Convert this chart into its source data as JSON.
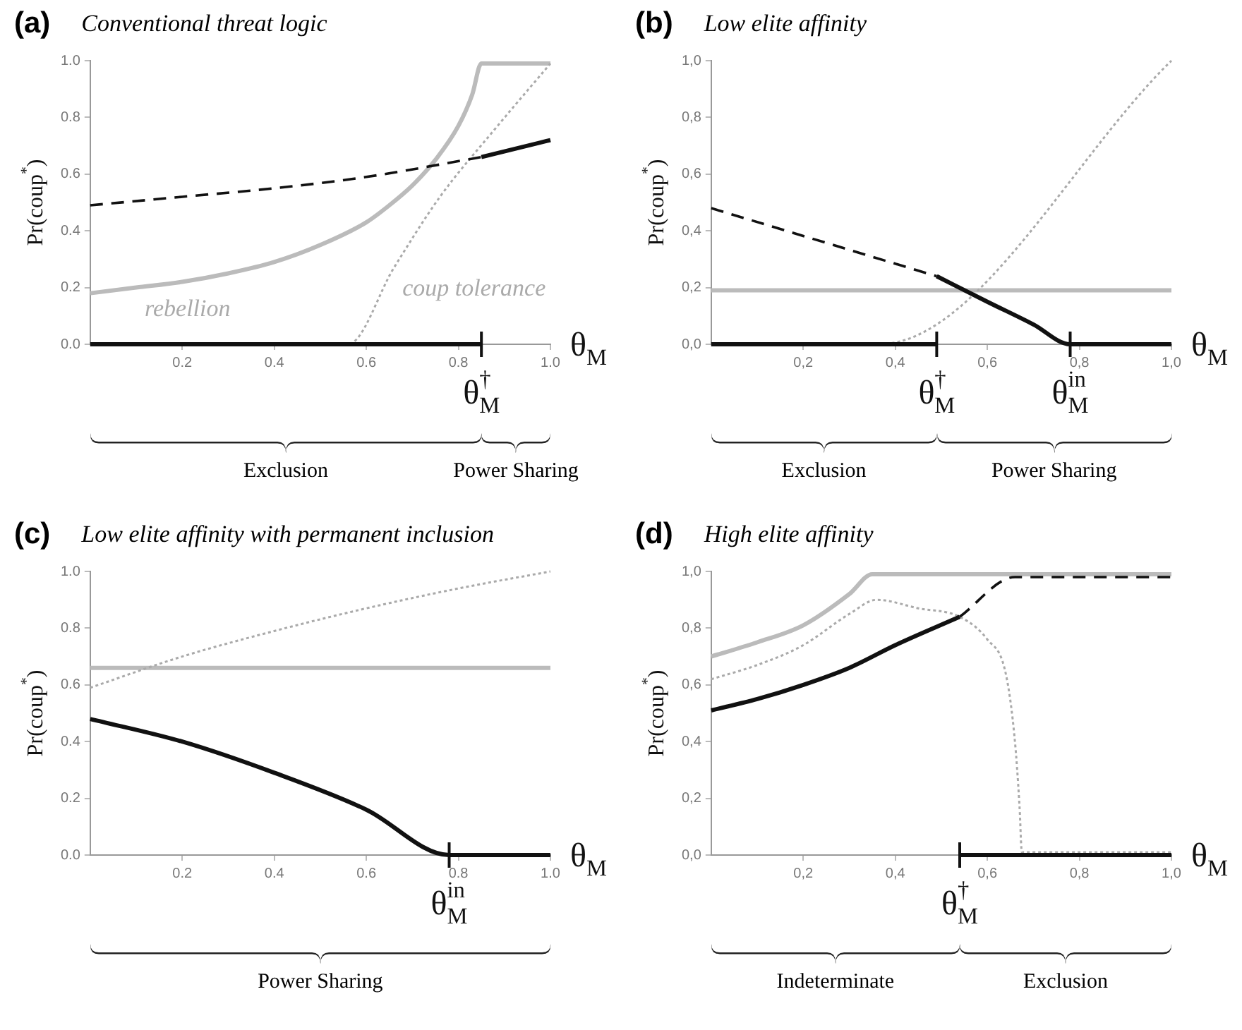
{
  "chart_data": [
    {
      "type": "line",
      "title": "(a)",
      "subtitle": "Conventional threat logic",
      "xlabel": "θ$_{M}$",
      "ylabel": "Pr(coup$^{*}$)",
      "xlim": [
        0,
        1
      ],
      "ylim": [
        0,
        1
      ],
      "xticks": [
        0.2,
        0.4,
        0.6,
        0.8,
        {
          "value": 1,
          "label": "1.0"
        }
      ],
      "yticks": [
        {
          "value": 0,
          "label": "0.0"
        },
        0.2,
        0.4,
        0.6,
        0.8,
        {
          "value": 1,
          "label": "1.0"
        }
      ],
      "series": [
        {
          "color": "#bbbbbb",
          "line_style": "solid",
          "x": [
            0,
            0.1,
            0.2,
            0.3,
            0.4,
            0.5,
            0.6,
            0.65,
            0.7,
            0.75,
            0.8,
            0.83,
            0.85,
            1
          ],
          "values": [
            0.18,
            0.2,
            0.22,
            0.25,
            0.29,
            0.35,
            0.43,
            0.49,
            0.56,
            0.65,
            0.77,
            0.88,
            0.99,
            0.99
          ]
        },
        {
          "color": "#aaaaaa",
          "line_style": "dotted",
          "x": [
            0,
            0.56,
            0.66,
            0.76,
            0.88,
            1
          ],
          "values": [
            0,
            0,
            0.27,
            0.52,
            0.76,
            0.99
          ]
        },
        {
          "color": "#111111",
          "line_style": "dashed",
          "x": [
            0,
            0.2,
            0.4,
            0.6,
            0.85
          ],
          "values": [
            0.49,
            0.52,
            0.55,
            0.59,
            0.66
          ]
        },
        {
          "color": "#111111",
          "line_style": "solid",
          "x": [
            0,
            0.85
          ],
          "values": [
            0,
            0
          ]
        },
        {
          "color": "#111111",
          "line_style": "solid",
          "x": [
            0.85,
            1
          ],
          "values": [
            0.66,
            0.72
          ]
        }
      ],
      "annotations": [
        {
          "text": "rebellion",
          "x": 0.1,
          "y": 0.2
        },
        {
          "text": "coup tolerance",
          "x": 0.66,
          "y": 0.27
        },
        {
          "text": "θ$_{M}$$^{†}$",
          "x": 0.85,
          "y": 0
        },
        "Exclusion",
        "Power Sharing"
      ]
    },
    {
      "type": "line",
      "title": "(b)",
      "subtitle": "Low elite affinity",
      "xlabel": "θ$_{M}$",
      "ylabel": "Pr(coup$^{*}$)",
      "xlim": [
        0,
        1
      ],
      "ylim": [
        0,
        1
      ],
      "xticks": [
        {
          "value": 0.2,
          "label": "0,2"
        },
        {
          "value": 0.4,
          "label": "0,4"
        },
        {
          "value": 0.6,
          "label": "0,6"
        },
        {
          "value": 0.8,
          "label": "0,8"
        },
        {
          "value": 1,
          "label": "1,0"
        }
      ],
      "yticks": [
        {
          "value": 0,
          "label": "0,0"
        },
        {
          "value": 0.2,
          "label": "0,2"
        },
        {
          "value": 0.4,
          "label": "0,4"
        },
        {
          "value": 0.6,
          "label": "0,6"
        },
        {
          "value": 0.8,
          "label": "0,8"
        },
        {
          "value": 1,
          "label": "1,0"
        }
      ],
      "series": [
        {
          "color": "#bbbbbb",
          "line_style": "solid",
          "x": [
            0,
            1
          ],
          "values": [
            0.19,
            0.19
          ]
        },
        {
          "color": "#aaaaaa",
          "line_style": "dotted",
          "x": [
            0,
            0.365,
            1
          ],
          "values": [
            0,
            0,
            1
          ]
        },
        {
          "color": "#111111",
          "line_style": "dashed",
          "x": [
            0,
            0.49
          ],
          "values": [
            0.48,
            0.24
          ]
        },
        {
          "color": "#111111",
          "line_style": "solid",
          "x": [
            0,
            0.49
          ],
          "values": [
            0,
            0
          ]
        },
        {
          "color": "#111111",
          "line_style": "solid",
          "x": [
            0.49,
            0.6,
            0.7,
            0.78,
            1
          ],
          "values": [
            0.24,
            0.15,
            0.07,
            0,
            0
          ]
        }
      ],
      "annotations": [
        {
          "text": "θ$_{M}$$^{†}$",
          "x": 0.49,
          "y": 0
        },
        {
          "text": "θ$_{M}$$^{in}$",
          "x": 0.78,
          "y": 0
        },
        "Exclusion",
        "Power Sharing"
      ]
    },
    {
      "type": "line",
      "title": "(c)",
      "subtitle": "Low elite affinity with permanent inclusion",
      "xlabel": "θ$_{M}$",
      "ylabel": "Pr(coup$^{*}$)",
      "xlim": [
        0,
        1
      ],
      "ylim": [
        0,
        1
      ],
      "xticks": [
        0.2,
        0.4,
        0.6,
        0.8,
        {
          "value": 1,
          "label": "1.0"
        }
      ],
      "yticks": [
        {
          "value": 0,
          "label": "0.0"
        },
        0.2,
        0.4,
        0.6,
        0.8,
        {
          "value": 1,
          "label": "1.0"
        }
      ],
      "series": [
        {
          "color": "#bbbbbb",
          "line_style": "solid",
          "x": [
            0,
            1
          ],
          "values": [
            0.66,
            0.66
          ]
        },
        {
          "color": "#aaaaaa",
          "line_style": "dotted",
          "x": [
            0,
            0.2,
            0.4,
            0.6,
            0.8,
            1
          ],
          "values": [
            0.59,
            0.7,
            0.79,
            0.87,
            0.94,
            1
          ]
        },
        {
          "color": "#111111",
          "line_style": "solid",
          "x": [
            0,
            0.2,
            0.4,
            0.6,
            0.78,
            1
          ],
          "values": [
            0.48,
            0.4,
            0.29,
            0.16,
            0,
            0
          ]
        }
      ],
      "annotations": [
        {
          "text": "θ$_{M}$$^{in}$",
          "x": 0.78,
          "y": 0
        },
        "Power Sharing"
      ]
    },
    {
      "type": "line",
      "title": "(d)",
      "subtitle": "High elite affinity",
      "xlabel": "θ$_{M}$",
      "ylabel": "Pr(coup$^{*}$)",
      "xlim": [
        0,
        1
      ],
      "ylim": [
        0,
        1
      ],
      "xticks": [
        {
          "value": 0.2,
          "label": "0,2"
        },
        {
          "value": 0.4,
          "label": "0,4"
        },
        {
          "value": 0.6,
          "label": "0,6"
        },
        {
          "value": 0.8,
          "label": "0,8"
        },
        {
          "value": 1,
          "label": "1,0"
        }
      ],
      "yticks": [
        {
          "value": 0,
          "label": "0,0"
        },
        {
          "value": 0.2,
          "label": "0,2"
        },
        {
          "value": 0.4,
          "label": "0,4"
        },
        {
          "value": 0.6,
          "label": "0,6"
        },
        {
          "value": 0.8,
          "label": "0,8"
        },
        {
          "value": 1,
          "label": "1,0"
        }
      ],
      "series": [
        {
          "color": "#bbbbbb",
          "line_style": "solid",
          "x": [
            0,
            0.1,
            0.2,
            0.3,
            0.35,
            1
          ],
          "values": [
            0.7,
            0.75,
            0.81,
            0.92,
            0.99,
            0.99
          ]
        },
        {
          "color": "#aaaaaa",
          "line_style": "dotted",
          "x": [
            0,
            0.1,
            0.2,
            0.3,
            0.36,
            0.45,
            0.54,
            0.6,
            0.64,
            0.66,
            0.67,
            0.675,
            1
          ],
          "values": [
            0.62,
            0.67,
            0.74,
            0.85,
            0.9,
            0.87,
            0.84,
            0.76,
            0.64,
            0.4,
            0.17,
            0.01,
            0.01
          ]
        },
        {
          "color": "#111111",
          "line_style": "dashed",
          "x": [
            0.54,
            0.66,
            1
          ],
          "values": [
            0.84,
            0.98,
            0.98
          ]
        },
        {
          "color": "#111111",
          "line_style": "solid",
          "x": [
            0,
            0.1,
            0.2,
            0.3,
            0.4,
            0.54
          ],
          "values": [
            0.51,
            0.55,
            0.6,
            0.66,
            0.74,
            0.84
          ]
        },
        {
          "color": "#111111",
          "line_style": "solid",
          "x": [
            0.54,
            1
          ],
          "values": [
            0,
            0
          ]
        }
      ],
      "annotations": [
        {
          "text": "θ$_{M}$$^{†}$",
          "x": 0.54,
          "y": 0
        },
        "Indeterminate",
        "Exclusion"
      ]
    }
  ]
}
